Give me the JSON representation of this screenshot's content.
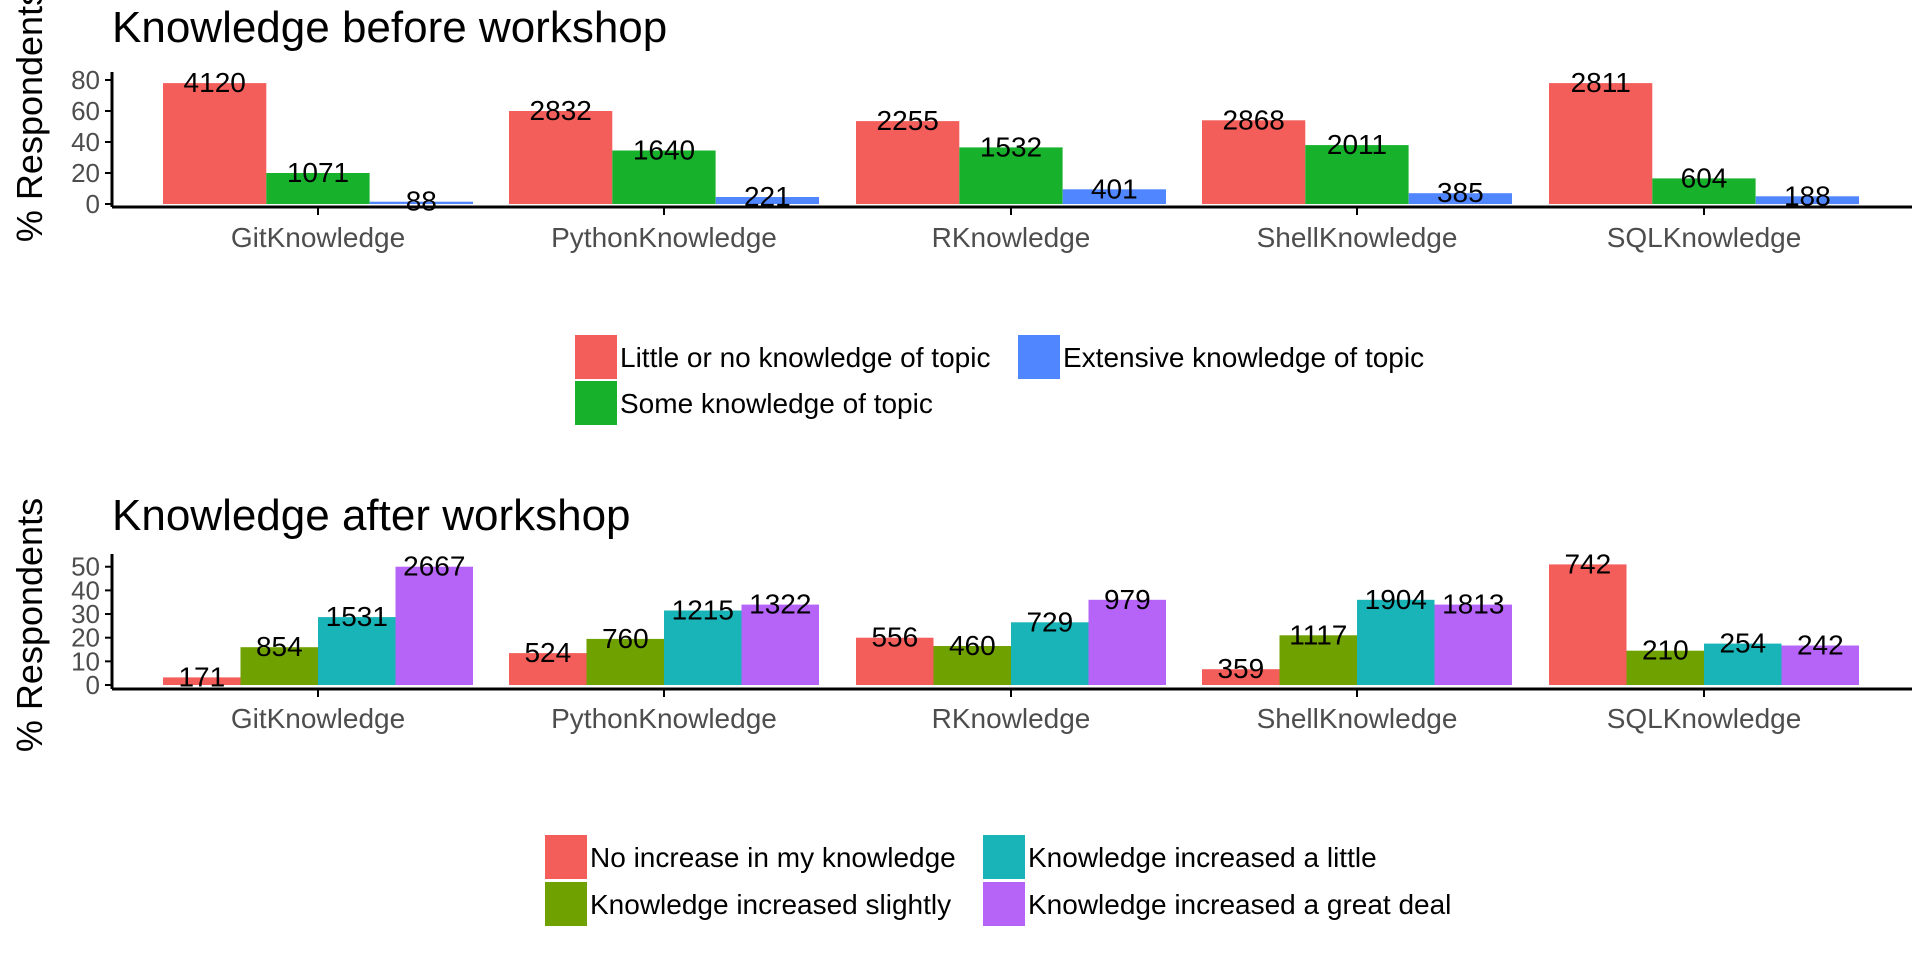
{
  "chart_data": [
    {
      "type": "bar",
      "title": "Knowledge before workshop",
      "xlabel": "",
      "ylabel": "% Respondents",
      "ylim": [
        0,
        80
      ],
      "yticks": [
        0,
        20,
        40,
        60,
        80
      ],
      "grid": false,
      "legend_placement": "bottom",
      "categories": [
        "GitKnowledge",
        "PythonKnowledge",
        "RKnowledge",
        "ShellKnowledge",
        "SQLKnowledge"
      ],
      "series": [
        {
          "name": "Little or no knowledge of topic",
          "color": "#F35E5A",
          "values": [
            78,
            60,
            53.5,
            54,
            78
          ],
          "labels": [
            "4120",
            "2832",
            "2255",
            "2868",
            "2811"
          ]
        },
        {
          "name": "Some knowledge of topic",
          "color": "#17B12B",
          "values": [
            20,
            34.5,
            36.5,
            38,
            16.5
          ],
          "labels": [
            "1071",
            "1640",
            "1532",
            "2011",
            "604"
          ]
        },
        {
          "name": "Extensive knowledge of topic",
          "color": "#5086FF",
          "values": [
            1.5,
            4.5,
            9.5,
            7,
            5
          ],
          "labels": [
            "88",
            "221",
            "401",
            "385",
            "188"
          ]
        }
      ],
      "legend_order": [
        0,
        2,
        1
      ]
    },
    {
      "type": "bar",
      "title": "Knowledge after workshop",
      "xlabel": "",
      "ylabel": "% Respondents",
      "ylim": [
        0,
        52
      ],
      "yticks": [
        0,
        10,
        20,
        30,
        40,
        50
      ],
      "grid": false,
      "legend_placement": "bottom",
      "categories": [
        "GitKnowledge",
        "PythonKnowledge",
        "RKnowledge",
        "ShellKnowledge",
        "SQLKnowledge"
      ],
      "series": [
        {
          "name": "No increase in my knowledge",
          "color": "#F35E5A",
          "values": [
            3.2,
            13.5,
            20,
            6.7,
            51
          ],
          "labels": [
            "171",
            "524",
            "556",
            "359",
            "742"
          ]
        },
        {
          "name": "Knowledge increased slightly",
          "color": "#6FA100",
          "values": [
            16,
            19.5,
            16.5,
            21,
            14.5
          ],
          "labels": [
            "854",
            "760",
            "460",
            "1117",
            "210"
          ]
        },
        {
          "name": "Knowledge increased a little",
          "color": "#18B4B8",
          "values": [
            28.7,
            31.5,
            26.5,
            36,
            17.5
          ],
          "labels": [
            "1531",
            "1215",
            "729",
            "1904",
            "254"
          ]
        },
        {
          "name": "Knowledge increased a great deal",
          "color": "#B664F8",
          "values": [
            50,
            34,
            36,
            34,
            16.7
          ],
          "labels": [
            "2667",
            "1322",
            "979",
            "1813",
            "242"
          ]
        }
      ],
      "legend_order": [
        0,
        2,
        1,
        3
      ]
    }
  ]
}
